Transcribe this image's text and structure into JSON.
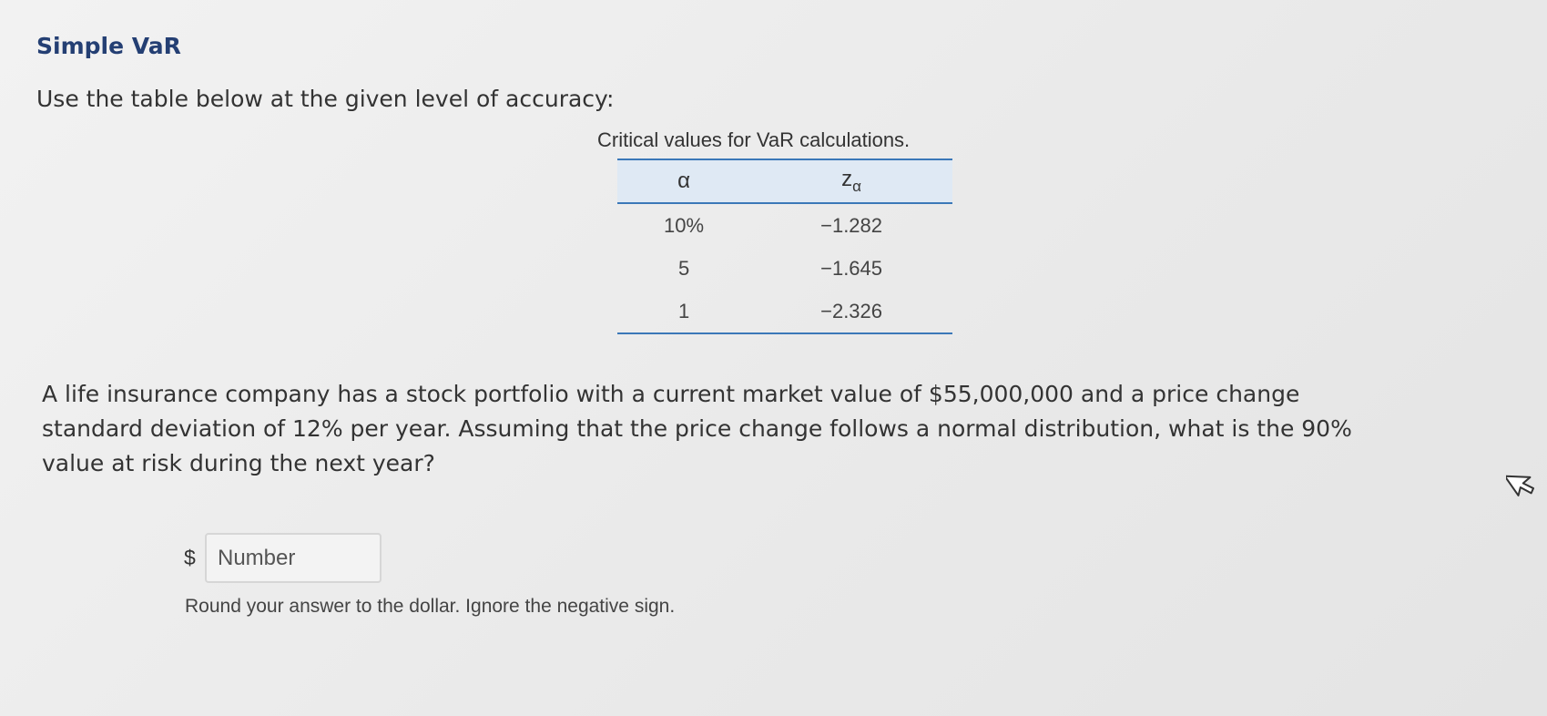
{
  "header": {
    "title": "Simple VaR"
  },
  "instruction": "Use the table below at the given level of accuracy:",
  "table": {
    "caption": "Critical values for VaR calculations.",
    "columns": [
      {
        "symbol": "α"
      },
      {
        "symbol": "z",
        "subscript": "α"
      }
    ],
    "rows": [
      [
        "10%",
        "−1.282"
      ],
      [
        "5",
        "−1.645"
      ],
      [
        "1",
        "−2.326"
      ]
    ]
  },
  "question": {
    "lines": [
      "A life insurance company has a stock portfolio with a current market value of $55,000,000  and a price change",
      "standard deviation of 12% per year. Assuming that the price change follows a normal distribution, what is the 90%",
      "value at risk during the next year?"
    ]
  },
  "answer": {
    "currency": "$",
    "placeholder": "Number",
    "note": "Round your answer to the dollar. Ignore the negative sign."
  }
}
